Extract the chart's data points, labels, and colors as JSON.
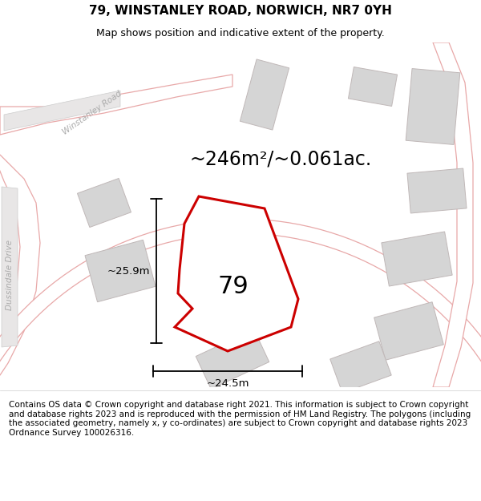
{
  "title": "79, WINSTANLEY ROAD, NORWICH, NR7 0YH",
  "subtitle": "Map shows position and indicative extent of the property.",
  "area_text": "~246m²/~0.061ac.",
  "label_79": "79",
  "dim_height": "~25.9m",
  "dim_width": "~24.5m",
  "footer": "Contains OS data © Crown copyright and database right 2021. This information is subject to Crown copyright and database rights 2023 and is reproduced with the permission of HM Land Registry. The polygons (including the associated geometry, namely x, y co-ordinates) are subject to Crown copyright and database rights 2023 Ordnance Survey 100026316.",
  "bg_color": "#f0eeee",
  "plot_outline_color": "#cc0000",
  "neighbor_fill": "#d5d5d5",
  "neighbor_edge": "#c0b8b8",
  "road_line_color": "#e8a8a8",
  "road_label_color": "#aaaaaa",
  "winstanley_label": "Winstanley Road",
  "dussindale_label": "Dussindale Drive",
  "title_fontsize": 11,
  "subtitle_fontsize": 9,
  "area_fontsize": 17,
  "label_fontsize": 22,
  "footer_fontsize": 7.5,
  "dim_fontsize": 9.5
}
